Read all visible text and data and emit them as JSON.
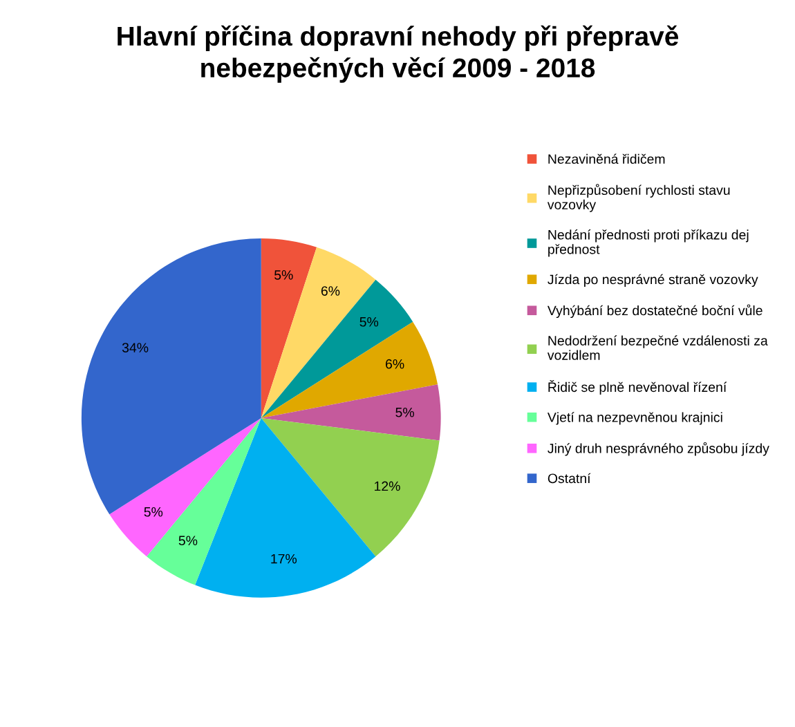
{
  "chart_data": {
    "type": "pie",
    "title": "Hlavní příčina dopravní nehody při přepravě nebezpečných věcí 2009 - 2018",
    "categories": [
      "Nezaviněná řidičem",
      "Nepřizpůsobení rychlosti stavu vozovky",
      "Nedání přednosti proti příkazu dej přednost",
      "Jízda po nesprávné straně vozovky",
      "Vyhýbání bez dostatečné boční vůle",
      "Nedodržení bezpečné vzdálenosti za vozidlem",
      "Řidič se plně nevěnoval řízení",
      "Vjetí na nezpevněnou krajnici",
      "Jiný druh nesprávného způsobu jízdy",
      "Ostatní"
    ],
    "values": [
      5,
      6,
      5,
      6,
      5,
      12,
      17,
      5,
      5,
      34
    ],
    "colors": [
      "#f0533a",
      "#ffd966",
      "#009999",
      "#e0a800",
      "#c55a9c",
      "#92d050",
      "#00b0f0",
      "#66ff99",
      "#ff66ff",
      "#3366cc"
    ],
    "value_labels": [
      "5%",
      "6%",
      "5%",
      "6%",
      "5%",
      "12%",
      "17%",
      "5%",
      "5%",
      "34%"
    ],
    "legend": "right"
  }
}
